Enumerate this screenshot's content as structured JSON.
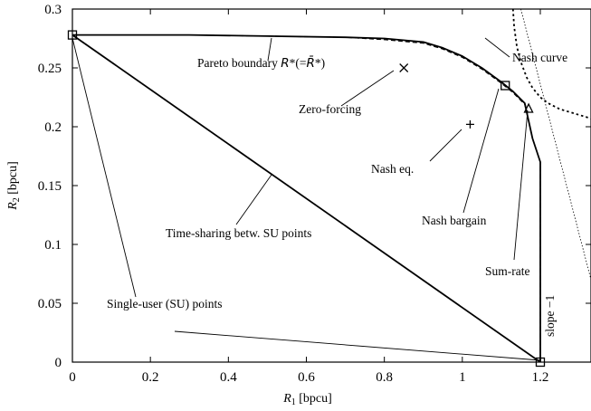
{
  "chart_data": {
    "type": "line",
    "title": "",
    "xlabel": "R1 [bpcu]",
    "ylabel": "R2 [bpcu]",
    "xlim": [
      0,
      1.33
    ],
    "ylim": [
      0,
      0.3
    ],
    "xticks": [
      "0",
      "0.2",
      "0.4",
      "0.6",
      "0.8",
      "1",
      "1.2"
    ],
    "yticks": [
      "0",
      "0.05",
      "0.1",
      "0.15",
      "0.2",
      "0.25",
      "0.3"
    ],
    "grid": false,
    "legend": "none",
    "series": [
      {
        "name": "Pareto boundary R*(= R̄*)",
        "style": "solid",
        "x": [
          0,
          0.3,
          0.5,
          0.7,
          0.8,
          0.9,
          0.95,
          1.0,
          1.05,
          1.1,
          1.13,
          1.16,
          1.17,
          1.18,
          1.19,
          1.2,
          1.2,
          1.2
        ],
        "y": [
          0.278,
          0.278,
          0.277,
          0.276,
          0.275,
          0.272,
          0.267,
          0.26,
          0.25,
          0.238,
          0.23,
          0.22,
          0.205,
          0.19,
          0.18,
          0.17,
          0.05,
          0
        ]
      },
      {
        "name": "",
        "style": "dashed",
        "x": [
          0,
          0.3,
          0.5,
          0.7,
          0.8,
          0.9,
          0.95,
          1.0,
          1.05,
          1.1,
          1.13,
          1.16,
          1.17,
          1.18,
          1.19,
          1.2,
          1.2,
          1.2
        ],
        "y": [
          0.278,
          0.278,
          0.277,
          0.276,
          0.274,
          0.271,
          0.266,
          0.259,
          0.249,
          0.237,
          0.229,
          0.219,
          0.205,
          0.19,
          0.18,
          0.17,
          0.05,
          0
        ]
      },
      {
        "name": "Nash curve",
        "style": "dotted",
        "x": [
          1.13,
          1.133,
          1.14,
          1.15,
          1.165,
          1.18,
          1.2,
          1.22,
          1.25,
          1.28,
          1.31,
          1.33
        ],
        "y": [
          0.3,
          0.285,
          0.268,
          0.255,
          0.242,
          0.233,
          0.225,
          0.22,
          0.215,
          0.212,
          0.209,
          0.207
        ]
      },
      {
        "name": "Time-sharing betw. SU points",
        "style": "solid",
        "x": [
          0,
          1.2
        ],
        "y": [
          0.278,
          0
        ]
      },
      {
        "name": "slope -1",
        "style": "thin-dotted",
        "x": [
          1.15,
          1.33
        ],
        "y": [
          0.3,
          0.07
        ]
      }
    ],
    "points": [
      {
        "name": "Single-user (SU) points",
        "marker": "square",
        "x": 0,
        "y": 0.278
      },
      {
        "name": "Single-user (SU) points",
        "marker": "square",
        "x": 1.2,
        "y": 0
      },
      {
        "name": "Zero-forcing",
        "marker": "x",
        "x": 0.85,
        "y": 0.25
      },
      {
        "name": "Nash eq.",
        "marker": "plus",
        "x": 1.02,
        "y": 0.202
      },
      {
        "name": "Nash bargain",
        "marker": "square",
        "x": 1.11,
        "y": 0.235
      },
      {
        "name": "Sum-rate",
        "marker": "triangle",
        "x": 1.17,
        "y": 0.215
      }
    ],
    "annotations": [
      "Pareto boundary R*(= R̄*)",
      "Zero-forcing",
      "Nash eq.",
      "Nash bargain",
      "Sum-rate",
      "Time-sharing betw. SU points",
      "Single-user (SU) points",
      "Nash curve",
      "slope -1"
    ]
  },
  "labels": {
    "pareto_prefix": "Pareto boundary ",
    "pareto_math_a": "R",
    "pareto_math_b": "*(=",
    "pareto_math_c": "R̄",
    "pareto_math_d": "*)",
    "zero_forcing": "Zero-forcing",
    "nash_eq": "Nash eq.",
    "nash_bargain": "Nash bargain",
    "sum_rate": "Sum-rate",
    "time_sharing": "Time-sharing betw. SU points",
    "single_user": "Single-user (SU) points",
    "nash_curve": "Nash curve",
    "slope": "slope −1",
    "xlabel_var": "R",
    "xlabel_sub": "1",
    "xlabel_unit": " [bpcu]",
    "ylabel_var": "R",
    "ylabel_sub": "2",
    "ylabel_unit": " [bpcu]"
  }
}
